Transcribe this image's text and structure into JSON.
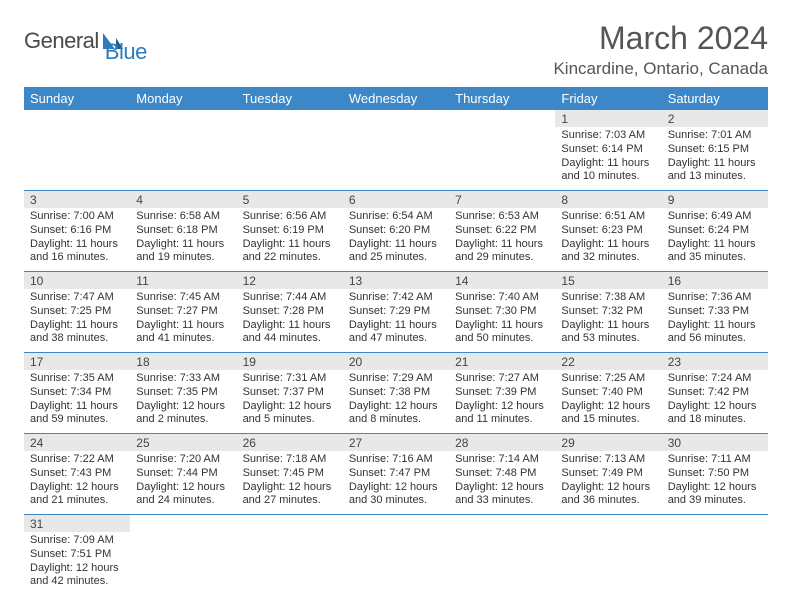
{
  "brand": {
    "part1": "General",
    "part2": "Blue"
  },
  "title": "March 2024",
  "location": "Kincardine, Ontario, Canada",
  "colors": {
    "header_bg": "#3b87c8",
    "header_text": "#ffffff",
    "daynum_bg": "#e8e8e8",
    "border": "#3b87c8",
    "text": "#333333",
    "title_text": "#555555"
  },
  "day_headers": [
    "Sunday",
    "Monday",
    "Tuesday",
    "Wednesday",
    "Thursday",
    "Friday",
    "Saturday"
  ],
  "weeks": [
    [
      null,
      null,
      null,
      null,
      null,
      {
        "n": "1",
        "sr": "Sunrise: 7:03 AM",
        "ss": "Sunset: 6:14 PM",
        "dl": "Daylight: 11 hours and 10 minutes."
      },
      {
        "n": "2",
        "sr": "Sunrise: 7:01 AM",
        "ss": "Sunset: 6:15 PM",
        "dl": "Daylight: 11 hours and 13 minutes."
      }
    ],
    [
      {
        "n": "3",
        "sr": "Sunrise: 7:00 AM",
        "ss": "Sunset: 6:16 PM",
        "dl": "Daylight: 11 hours and 16 minutes."
      },
      {
        "n": "4",
        "sr": "Sunrise: 6:58 AM",
        "ss": "Sunset: 6:18 PM",
        "dl": "Daylight: 11 hours and 19 minutes."
      },
      {
        "n": "5",
        "sr": "Sunrise: 6:56 AM",
        "ss": "Sunset: 6:19 PM",
        "dl": "Daylight: 11 hours and 22 minutes."
      },
      {
        "n": "6",
        "sr": "Sunrise: 6:54 AM",
        "ss": "Sunset: 6:20 PM",
        "dl": "Daylight: 11 hours and 25 minutes."
      },
      {
        "n": "7",
        "sr": "Sunrise: 6:53 AM",
        "ss": "Sunset: 6:22 PM",
        "dl": "Daylight: 11 hours and 29 minutes."
      },
      {
        "n": "8",
        "sr": "Sunrise: 6:51 AM",
        "ss": "Sunset: 6:23 PM",
        "dl": "Daylight: 11 hours and 32 minutes."
      },
      {
        "n": "9",
        "sr": "Sunrise: 6:49 AM",
        "ss": "Sunset: 6:24 PM",
        "dl": "Daylight: 11 hours and 35 minutes."
      }
    ],
    [
      {
        "n": "10",
        "sr": "Sunrise: 7:47 AM",
        "ss": "Sunset: 7:25 PM",
        "dl": "Daylight: 11 hours and 38 minutes."
      },
      {
        "n": "11",
        "sr": "Sunrise: 7:45 AM",
        "ss": "Sunset: 7:27 PM",
        "dl": "Daylight: 11 hours and 41 minutes."
      },
      {
        "n": "12",
        "sr": "Sunrise: 7:44 AM",
        "ss": "Sunset: 7:28 PM",
        "dl": "Daylight: 11 hours and 44 minutes."
      },
      {
        "n": "13",
        "sr": "Sunrise: 7:42 AM",
        "ss": "Sunset: 7:29 PM",
        "dl": "Daylight: 11 hours and 47 minutes."
      },
      {
        "n": "14",
        "sr": "Sunrise: 7:40 AM",
        "ss": "Sunset: 7:30 PM",
        "dl": "Daylight: 11 hours and 50 minutes."
      },
      {
        "n": "15",
        "sr": "Sunrise: 7:38 AM",
        "ss": "Sunset: 7:32 PM",
        "dl": "Daylight: 11 hours and 53 minutes."
      },
      {
        "n": "16",
        "sr": "Sunrise: 7:36 AM",
        "ss": "Sunset: 7:33 PM",
        "dl": "Daylight: 11 hours and 56 minutes."
      }
    ],
    [
      {
        "n": "17",
        "sr": "Sunrise: 7:35 AM",
        "ss": "Sunset: 7:34 PM",
        "dl": "Daylight: 11 hours and 59 minutes."
      },
      {
        "n": "18",
        "sr": "Sunrise: 7:33 AM",
        "ss": "Sunset: 7:35 PM",
        "dl": "Daylight: 12 hours and 2 minutes."
      },
      {
        "n": "19",
        "sr": "Sunrise: 7:31 AM",
        "ss": "Sunset: 7:37 PM",
        "dl": "Daylight: 12 hours and 5 minutes."
      },
      {
        "n": "20",
        "sr": "Sunrise: 7:29 AM",
        "ss": "Sunset: 7:38 PM",
        "dl": "Daylight: 12 hours and 8 minutes."
      },
      {
        "n": "21",
        "sr": "Sunrise: 7:27 AM",
        "ss": "Sunset: 7:39 PM",
        "dl": "Daylight: 12 hours and 11 minutes."
      },
      {
        "n": "22",
        "sr": "Sunrise: 7:25 AM",
        "ss": "Sunset: 7:40 PM",
        "dl": "Daylight: 12 hours and 15 minutes."
      },
      {
        "n": "23",
        "sr": "Sunrise: 7:24 AM",
        "ss": "Sunset: 7:42 PM",
        "dl": "Daylight: 12 hours and 18 minutes."
      }
    ],
    [
      {
        "n": "24",
        "sr": "Sunrise: 7:22 AM",
        "ss": "Sunset: 7:43 PM",
        "dl": "Daylight: 12 hours and 21 minutes."
      },
      {
        "n": "25",
        "sr": "Sunrise: 7:20 AM",
        "ss": "Sunset: 7:44 PM",
        "dl": "Daylight: 12 hours and 24 minutes."
      },
      {
        "n": "26",
        "sr": "Sunrise: 7:18 AM",
        "ss": "Sunset: 7:45 PM",
        "dl": "Daylight: 12 hours and 27 minutes."
      },
      {
        "n": "27",
        "sr": "Sunrise: 7:16 AM",
        "ss": "Sunset: 7:47 PM",
        "dl": "Daylight: 12 hours and 30 minutes."
      },
      {
        "n": "28",
        "sr": "Sunrise: 7:14 AM",
        "ss": "Sunset: 7:48 PM",
        "dl": "Daylight: 12 hours and 33 minutes."
      },
      {
        "n": "29",
        "sr": "Sunrise: 7:13 AM",
        "ss": "Sunset: 7:49 PM",
        "dl": "Daylight: 12 hours and 36 minutes."
      },
      {
        "n": "30",
        "sr": "Sunrise: 7:11 AM",
        "ss": "Sunset: 7:50 PM",
        "dl": "Daylight: 12 hours and 39 minutes."
      }
    ],
    [
      {
        "n": "31",
        "sr": "Sunrise: 7:09 AM",
        "ss": "Sunset: 7:51 PM",
        "dl": "Daylight: 12 hours and 42 minutes."
      },
      null,
      null,
      null,
      null,
      null,
      null
    ]
  ]
}
